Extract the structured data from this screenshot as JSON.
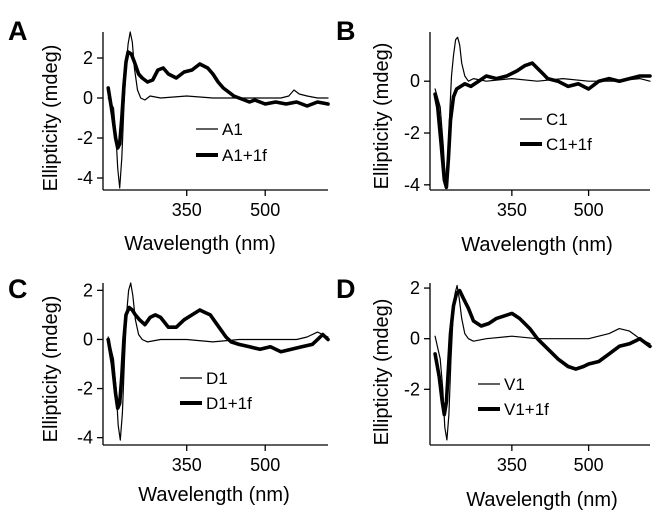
{
  "chart_data": [
    {
      "panel": "A",
      "type": "line",
      "xlabel": "Wavelength (nm)",
      "ylabel": "Ellipticity (mdeg)",
      "xlim": [
        190,
        620
      ],
      "ylim": [
        -4.6,
        3.3
      ],
      "xticks": [
        350,
        500
      ],
      "yticks": [
        -4,
        -2,
        0,
        2
      ],
      "legend_position": "lower-right",
      "series": [
        {
          "name": "A1",
          "weight": "thin",
          "x": [
            200,
            210,
            215,
            218,
            222,
            226,
            230,
            234,
            238,
            242,
            246,
            250,
            256,
            262,
            270,
            280,
            300,
            350,
            400,
            450,
            500,
            530,
            545,
            555,
            565,
            580,
            600,
            620
          ],
          "y": [
            0,
            -0.5,
            -2.0,
            -3.5,
            -4.5,
            -3.0,
            -0.5,
            1.5,
            2.7,
            3.3,
            2.8,
            1.5,
            0.4,
            0.0,
            -0.1,
            0.1,
            0.0,
            0.1,
            0.0,
            0.0,
            0.0,
            0.0,
            0.1,
            0.4,
            0.2,
            0.1,
            0.0,
            0.0
          ]
        },
        {
          "name": "A1+1f",
          "weight": "thick",
          "x": [
            200,
            208,
            214,
            218,
            222,
            226,
            230,
            234,
            238,
            244,
            250,
            258,
            265,
            275,
            285,
            295,
            305,
            315,
            330,
            345,
            360,
            375,
            390,
            400,
            410,
            420,
            430,
            440,
            450,
            460,
            470,
            480,
            490,
            500,
            520,
            540,
            560,
            580,
            600,
            620
          ],
          "y": [
            0.5,
            -0.8,
            -2.0,
            -2.5,
            -2.3,
            -1.0,
            0.6,
            1.8,
            2.3,
            2.2,
            1.8,
            1.2,
            1.0,
            0.8,
            0.9,
            1.4,
            1.5,
            1.2,
            1.0,
            1.3,
            1.4,
            1.7,
            1.5,
            1.2,
            0.8,
            0.5,
            0.3,
            0.1,
            0.0,
            -0.1,
            -0.2,
            -0.1,
            -0.2,
            -0.3,
            -0.2,
            -0.3,
            -0.2,
            -0.4,
            -0.2,
            -0.3
          ]
        }
      ]
    },
    {
      "panel": "B",
      "type": "line",
      "xlabel": "Wavelength (nm)",
      "ylabel": "Ellipticity (mdeg)",
      "xlim": [
        190,
        620
      ],
      "ylim": [
        -4.2,
        1.9
      ],
      "xticks": [
        350,
        500
      ],
      "yticks": [
        -4,
        -2,
        0
      ],
      "legend_position": "lower-right",
      "series": [
        {
          "name": "C1",
          "weight": "thin",
          "x": [
            200,
            210,
            216,
            220,
            224,
            228,
            232,
            236,
            240,
            244,
            248,
            252,
            258,
            265,
            275,
            300,
            350,
            400,
            450,
            500,
            550,
            600,
            620
          ],
          "y": [
            -0.3,
            -1.0,
            -2.5,
            -3.8,
            -3.5,
            -1.5,
            0.2,
            1.0,
            1.6,
            1.7,
            1.4,
            0.7,
            0.2,
            0.0,
            0.1,
            0.0,
            0.1,
            0.0,
            0.1,
            0.0,
            0.0,
            0.1,
            0.0
          ]
        },
        {
          "name": "C1+1f",
          "weight": "thick",
          "x": [
            200,
            205,
            212,
            218,
            222,
            226,
            230,
            236,
            242,
            250,
            258,
            270,
            285,
            300,
            320,
            340,
            360,
            375,
            390,
            400,
            410,
            420,
            440,
            460,
            480,
            500,
            520,
            540,
            560,
            580,
            600,
            620
          ],
          "y": [
            -0.5,
            -1.0,
            -2.5,
            -3.8,
            -4.1,
            -3.0,
            -1.5,
            -0.6,
            -0.3,
            -0.2,
            -0.1,
            -0.2,
            0.0,
            0.2,
            0.1,
            0.2,
            0.4,
            0.6,
            0.7,
            0.5,
            0.3,
            0.1,
            0.0,
            -0.2,
            -0.1,
            -0.3,
            0.0,
            0.1,
            0.0,
            0.1,
            0.2,
            0.2
          ]
        }
      ]
    },
    {
      "panel": "C",
      "type": "line",
      "xlabel": "Wavelength (nm)",
      "ylabel": "Ellipticity (mdeg)",
      "xlim": [
        190,
        620
      ],
      "ylim": [
        -4.3,
        2.3
      ],
      "xticks": [
        350,
        500
      ],
      "yticks": [
        -4,
        -2,
        0,
        2
      ],
      "legend_position": "lower-right",
      "series": [
        {
          "name": "D1",
          "weight": "thin",
          "x": [
            200,
            210,
            215,
            219,
            223,
            227,
            231,
            235,
            239,
            243,
            247,
            252,
            258,
            265,
            275,
            300,
            350,
            400,
            450,
            500,
            540,
            560,
            580,
            600,
            620
          ],
          "y": [
            0.1,
            -0.8,
            -2.0,
            -3.5,
            -4.1,
            -3.0,
            -0.8,
            1.0,
            2.0,
            2.3,
            1.8,
            0.8,
            0.2,
            0.0,
            -0.1,
            0.0,
            0.0,
            -0.1,
            0.0,
            0.0,
            0.0,
            0.0,
            0.1,
            0.3,
            0.1
          ]
        },
        {
          "name": "D1+1f",
          "weight": "thick",
          "x": [
            200,
            208,
            214,
            218,
            222,
            226,
            230,
            234,
            240,
            246,
            252,
            260,
            270,
            280,
            290,
            300,
            315,
            330,
            345,
            360,
            375,
            385,
            395,
            405,
            415,
            425,
            435,
            450,
            470,
            490,
            510,
            530,
            550,
            570,
            590,
            610,
            620
          ],
          "y": [
            0.0,
            -1.0,
            -2.2,
            -2.8,
            -2.6,
            -1.5,
            0.0,
            1.0,
            1.3,
            1.2,
            1.0,
            0.8,
            0.6,
            0.9,
            1.0,
            0.9,
            0.5,
            0.5,
            0.8,
            1.0,
            1.2,
            1.1,
            1.0,
            0.7,
            0.4,
            0.1,
            -0.1,
            -0.2,
            -0.3,
            -0.4,
            -0.3,
            -0.5,
            -0.4,
            -0.3,
            -0.2,
            0.2,
            0.0
          ]
        }
      ]
    },
    {
      "panel": "D",
      "type": "line",
      "xlabel": "Wavelength (nm)",
      "ylabel": "Ellipticity (mdeg)",
      "xlim": [
        190,
        620
      ],
      "ylim": [
        -4.2,
        2.2
      ],
      "xticks": [
        350,
        500
      ],
      "yticks": [
        -2,
        0,
        2
      ],
      "legend_position": "lower-right",
      "series": [
        {
          "name": "V1",
          "weight": "thin",
          "x": [
            200,
            210,
            215,
            219,
            223,
            227,
            231,
            235,
            239,
            243,
            247,
            252,
            258,
            265,
            275,
            300,
            350,
            400,
            450,
            500,
            540,
            560,
            580,
            600,
            620
          ],
          "y": [
            0.1,
            -0.8,
            -2.0,
            -3.5,
            -4.0,
            -3.0,
            -0.8,
            0.8,
            1.8,
            2.1,
            1.6,
            0.8,
            0.2,
            0.0,
            -0.1,
            0.0,
            0.1,
            0.0,
            0.0,
            0.0,
            0.2,
            0.4,
            0.3,
            0.0,
            -0.2
          ]
        },
        {
          "name": "V1+1f",
          "weight": "thick",
          "x": [
            200,
            208,
            214,
            218,
            222,
            226,
            230,
            236,
            242,
            248,
            255,
            265,
            275,
            290,
            305,
            320,
            335,
            350,
            365,
            375,
            385,
            400,
            420,
            440,
            460,
            475,
            490,
            500,
            520,
            540,
            560,
            580,
            600,
            620
          ],
          "y": [
            -0.6,
            -1.5,
            -2.5,
            -3.0,
            -2.5,
            -1.2,
            0.2,
            1.3,
            1.8,
            1.9,
            1.6,
            1.2,
            0.7,
            0.5,
            0.6,
            0.8,
            0.9,
            1.0,
            0.8,
            0.6,
            0.4,
            0.0,
            -0.4,
            -0.8,
            -1.1,
            -1.2,
            -1.1,
            -1.0,
            -0.9,
            -0.6,
            -0.3,
            -0.2,
            0.0,
            -0.3
          ]
        }
      ]
    }
  ],
  "legend_entries": [
    [
      "A1",
      "A1+1f"
    ],
    [
      "C1",
      "C1+1f"
    ],
    [
      "D1",
      "D1+1f"
    ],
    [
      "V1",
      "V1+1f"
    ]
  ]
}
